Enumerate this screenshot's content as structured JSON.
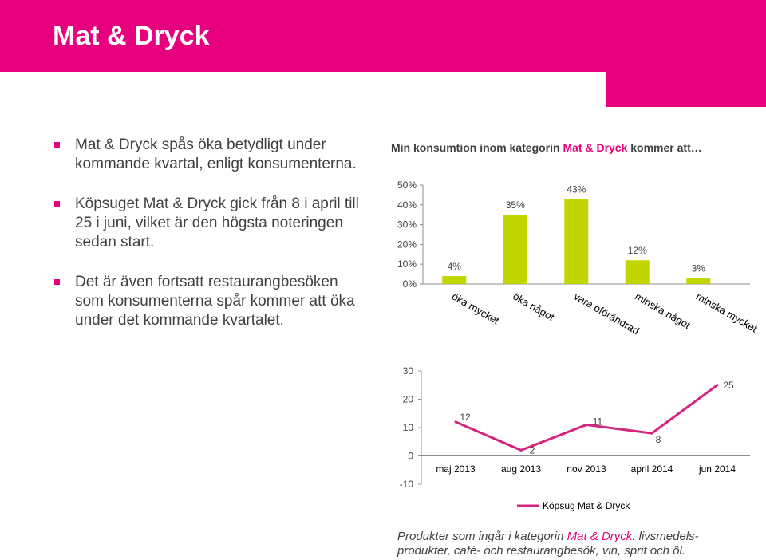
{
  "slide": {
    "title": "Mat & Dryck",
    "bullets": [
      "Mat & Dryck spås öka betydligt under kommande kvartal, enligt konsumenterna.",
      "Köpsuget Mat & Dryck gick från 8 i april till 25 i juni, vilket är den högsta noteringen sedan start.",
      "Det är även fortsatt restaurangbesöken som konsumenterna spår kommer att öka under det kommande kvartalet."
    ],
    "chart_title_part1": "Min konsumtion inom kategorin ",
    "chart_title_accent": "Mat & Dryck",
    "chart_title_part2": " kommer att…",
    "footnote_part1": "Produkter som ingår i kategorin ",
    "footnote_accent": "Mat & Dryck",
    "footnote_part2": ": livsmedels-produkter, café- och restaurangbesök, vin, sprit och öl."
  },
  "colors": {
    "brand": "#e6007e",
    "bar": "#c1d500",
    "line": "#d6247e",
    "text": "#404040"
  },
  "chart_data": [
    {
      "type": "bar",
      "categories": [
        "öka mycket",
        "öka något",
        "vara oförändrad",
        "minska något",
        "minska mycket"
      ],
      "values": [
        4,
        35,
        43,
        12,
        3
      ],
      "data_labels": [
        "4%",
        "35%",
        "43%",
        "12%",
        "3%"
      ],
      "yticks": [
        "0%",
        "10%",
        "20%",
        "30%",
        "40%",
        "50%"
      ],
      "ylim": [
        0,
        50
      ],
      "grid": false
    },
    {
      "type": "line",
      "categories": [
        "maj 2013",
        "aug 2013",
        "nov 2013",
        "april 2014",
        "jun 2014"
      ],
      "series": [
        {
          "name": "Köpsug Mat & Dryck",
          "values": [
            12,
            2,
            11,
            8,
            25
          ]
        }
      ],
      "yticks": [
        "-10",
        "0",
        "10",
        "20",
        "30"
      ],
      "ylim": [
        -10,
        30
      ],
      "legend": "bottom",
      "grid": false
    }
  ]
}
